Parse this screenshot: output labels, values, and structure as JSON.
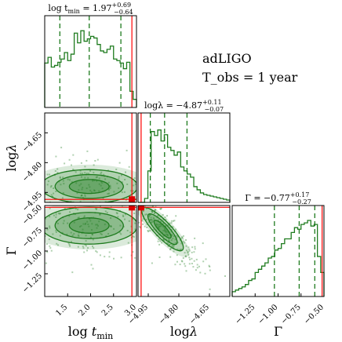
{
  "chart_data": {
    "type": "corner",
    "annotation": {
      "detector": "adLIGO",
      "observation": "T_obs = 1 year"
    },
    "parameters": [
      {
        "name": "log t_min",
        "label_main": "log",
        "label_sub": "min",
        "label_sym": "t",
        "range": [
          1.0,
          3.0
        ],
        "ticks": [
          1.5,
          2.0,
          2.5,
          3.0
        ],
        "tick_labels": [
          "1.5",
          "2.0",
          "2.5",
          "3.0"
        ],
        "median": 1.97,
        "plus": 0.69,
        "minus": 0.64,
        "title_text": "log t",
        "title_sub": "min",
        "title_value": " = 1.97",
        "title_plus": "+0.69",
        "title_minus": "−0.64",
        "quantiles": [
          1.33,
          1.97,
          2.66
        ],
        "true_value": 2.9,
        "hist": [
          0.55,
          0.62,
          0.5,
          0.52,
          0.56,
          0.6,
          0.68,
          0.58,
          0.66,
          0.92,
          0.8,
          0.95,
          0.82,
          0.85,
          0.88,
          0.86,
          0.78,
          0.7,
          0.68,
          0.72,
          0.76,
          0.6,
          0.58,
          0.55,
          0.48,
          0.56,
          0.2,
          0.1
        ]
      },
      {
        "name": "log lambda",
        "label_main": "log",
        "label_sym": "λ",
        "range": [
          -5.0,
          -4.55
        ],
        "ticks": [
          -4.95,
          -4.8,
          -4.65
        ],
        "tick_labels": [
          "−4.95",
          "−4.80",
          "−4.65"
        ],
        "median": -4.87,
        "plus": 0.11,
        "minus": 0.07,
        "title_text": "logλ = −4.87",
        "title_plus": "+0.11",
        "title_minus": "−0.07",
        "quantiles": [
          -4.94,
          -4.87,
          -4.76
        ],
        "true_value": -4.985,
        "hist": [
          0.0,
          0.0,
          0.05,
          0.4,
          0.9,
          0.85,
          0.92,
          0.78,
          0.86,
          0.7,
          0.66,
          0.6,
          0.64,
          0.45,
          0.4,
          0.36,
          0.32,
          0.2,
          0.16,
          0.12,
          0.1,
          0.09,
          0.08,
          0.07,
          0.06,
          0.05,
          0.04,
          0.03
        ]
      },
      {
        "name": "Gamma",
        "label_sym": "Γ",
        "range": [
          -1.5,
          -0.5
        ],
        "ticks": [
          -1.25,
          -1.0,
          -0.75,
          -0.5
        ],
        "tick_labels": [
          "−1.25",
          "−1.00",
          "−0.75",
          "−0.50"
        ],
        "median": -0.77,
        "plus": 0.17,
        "minus": 0.27,
        "title_text": "Γ = −0.77",
        "title_plus": "+0.17",
        "title_minus": "−0.27",
        "quantiles": [
          -1.04,
          -0.77,
          -0.6
        ],
        "true_value": -0.52,
        "hist": [
          0.06,
          0.08,
          0.1,
          0.12,
          0.15,
          0.2,
          0.22,
          0.3,
          0.34,
          0.38,
          0.42,
          0.48,
          0.5,
          0.58,
          0.6,
          0.66,
          0.72,
          0.72,
          0.8,
          0.86,
          0.84,
          0.9,
          0.92,
          0.95,
          0.88,
          0.9,
          0.5,
          0.3
        ]
      }
    ],
    "pairs": [
      {
        "x": 0,
        "y": 1,
        "center": [
          1.97,
          -4.92
        ],
        "sd": [
          0.62,
          0.05
        ],
        "rho": 0.0
      },
      {
        "x": 0,
        "y": 2,
        "center": [
          1.97,
          -0.72
        ],
        "sd": [
          0.62,
          0.12
        ],
        "rho": 0.0
      },
      {
        "x": 1,
        "y": 2,
        "center": [
          -4.88,
          -0.76
        ],
        "sd": [
          0.06,
          0.14
        ],
        "rho": -0.85
      }
    ],
    "colors": {
      "samples": "#1e7b1e",
      "truth": "#ff0000",
      "marker": "#dd0000",
      "axes": "#000000"
    }
  }
}
